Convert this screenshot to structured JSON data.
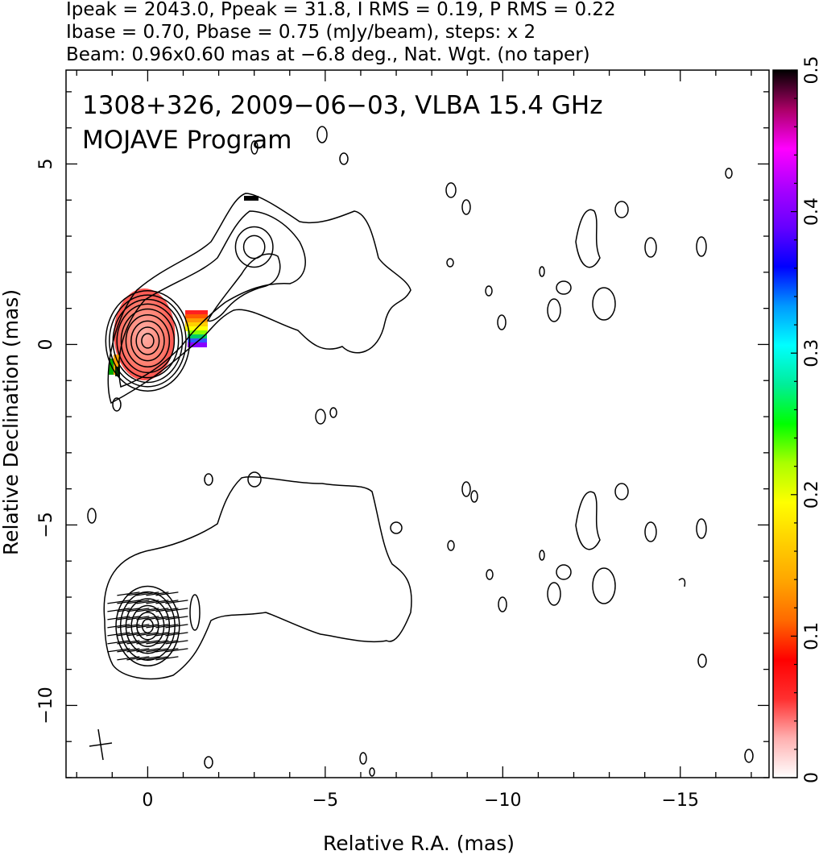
{
  "header": {
    "line1": "Ipeak = 2043.0, Ppeak = 31.8, I RMS = 0.19, P RMS = 0.22",
    "line2": "Ibase = 0.70, Pbase = 0.75 (mJy/beam), steps: x 2",
    "line3": "Beam: 0.96x0.60 mas at −6.8 deg., Nat. Wgt. (no taper)"
  },
  "panel": {
    "title_line1": "1308+326, 2009−06−03, VLBA 15.4 GHz",
    "title_line2": "MOJAVE Program"
  },
  "chart_data": {
    "type": "heatmap",
    "xlabel": "Relative R.A. (mas)",
    "ylabel": "Relative Declination (mas)",
    "xlim": [
      2.3,
      -17.5
    ],
    "ylim": [
      -12.0,
      7.6
    ],
    "x_ticks": [
      0,
      -5,
      -10,
      -15
    ],
    "x_tick_labels": [
      "0",
      "−5",
      "−10",
      "−15"
    ],
    "y_ticks": [
      5,
      0,
      -5,
      -10
    ],
    "y_tick_labels": [
      "5",
      "0",
      "−5",
      "−10"
    ],
    "colorbar": {
      "min": 0,
      "max": 0.5,
      "ticks": [
        0,
        0.1,
        0.2,
        0.3,
        0.4,
        0.5
      ],
      "tick_labels": [
        "0",
        "0.1",
        "0.2",
        "0.3",
        "0.4",
        "0.5"
      ],
      "colors": [
        "#ffffff",
        "#ffb0b0",
        "#ff3030",
        "#ff0000",
        "#ff6a00",
        "#ffa500",
        "#ffd000",
        "#ffff00",
        "#aaff00",
        "#00ff00",
        "#00ee99",
        "#00ffff",
        "#0099ff",
        "#0000ff",
        "#6600ff",
        "#aa00ff",
        "#ff00ff",
        "#aa0066",
        "#000000"
      ]
    },
    "upper_panel": {
      "core": {
        "x": 0.0,
        "y": 0.1,
        "radii": [
          0.2,
          0.38,
          0.55,
          0.72,
          0.88,
          1.02,
          1.15,
          1.27,
          1.39
        ]
      },
      "knot": {
        "x": -3.0,
        "y": 2.7,
        "radii": [
          0.35,
          0.62
        ]
      }
    },
    "lower_panel": {
      "core": {
        "x": 0.0,
        "y": -7.8,
        "radii": [
          0.18,
          0.36,
          0.54,
          0.72,
          0.9,
          1.05
        ]
      }
    }
  }
}
